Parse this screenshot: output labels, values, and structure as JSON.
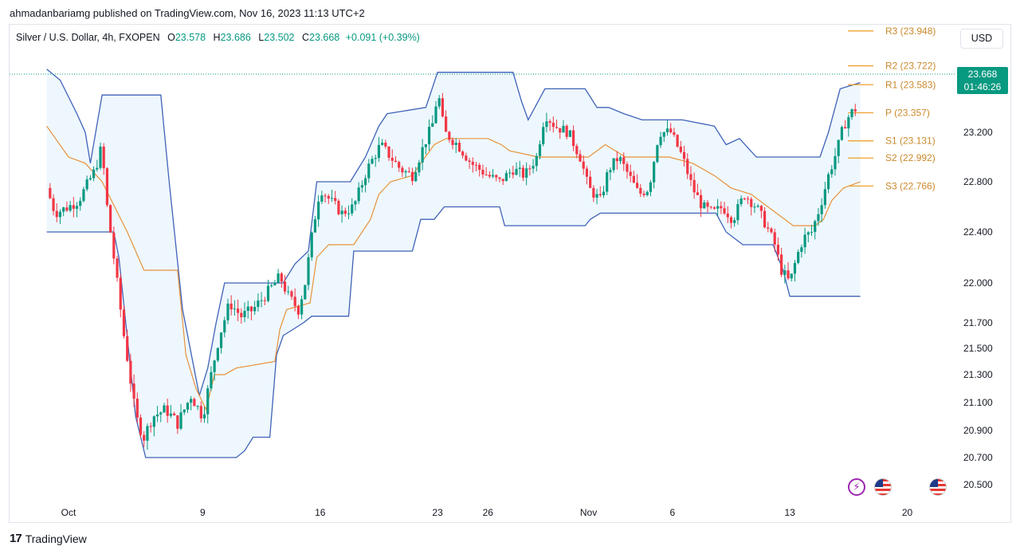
{
  "publisher": "ahmadanbariamg published on TradingView.com, Nov 16, 2023 11:13 UTC+2",
  "legend": {
    "symbol": "Silver / U.S. Dollar, 4h, FXOPEN",
    "o_label": "O",
    "o": "23.578",
    "h_label": "H",
    "h": "23.686",
    "l_label": "L",
    "l": "23.502",
    "c_label": "C",
    "c": "23.668",
    "change": "+0.091 (+0.39%)"
  },
  "currency": "USD",
  "price_tag": {
    "price": "23.668",
    "countdown": "01:46:26"
  },
  "footer": {
    "logo_text": "TradingView"
  },
  "colors": {
    "up": "#089981",
    "down": "#f23645",
    "channel": "#3f62b8",
    "midline": "#e8923a",
    "pivot": "#f0a030",
    "fill": "#e3f2fd"
  },
  "icons": [
    "lightning-icon",
    "us-flag-icon",
    "us-flag-icon"
  ],
  "chart_data": {
    "type": "candlestick",
    "title": "Silver / U.S. Dollar, 4h, FXOPEN",
    "y_ticks": [
      "23.200",
      "22.800",
      "22.400",
      "22.000",
      "21.700",
      "21.500",
      "21.300",
      "21.100",
      "20.900",
      "20.700",
      "20.500"
    ],
    "y_tick_values": [
      23.2,
      22.8,
      22.4,
      22.0,
      21.7,
      21.5,
      21.3,
      21.1,
      20.9,
      20.7,
      20.5
    ],
    "x_ticks": [
      {
        "label": "Oct",
        "day": 0
      },
      {
        "label": "9",
        "day": 8
      },
      {
        "label": "16",
        "day": 15
      },
      {
        "label": "23",
        "day": 22
      },
      {
        "label": "26",
        "day": 25
      },
      {
        "label": "Nov",
        "day": 31
      },
      {
        "label": "6",
        "day": 36
      },
      {
        "label": "13",
        "day": 43
      },
      {
        "label": "20",
        "day": 50
      }
    ],
    "pivots": [
      {
        "name": "R3",
        "label": "R3 (23.948)",
        "value": 23.948
      },
      {
        "name": "R2",
        "label": "R2 (23.722)",
        "value": 23.722
      },
      {
        "name": "R1",
        "label": "R1 (23.583)",
        "value": 23.583
      },
      {
        "name": "P",
        "label": "P (23.357)",
        "value": 23.357
      },
      {
        "name": "S1",
        "label": "S1 (23.131)",
        "value": 23.131
      },
      {
        "name": "S2",
        "label": "S2 (22.992)",
        "value": 22.992
      },
      {
        "name": "S3",
        "label": "S3 (22.766)",
        "value": 22.766
      }
    ],
    "last_price": 23.668,
    "price_path": [
      [
        -1.3,
        22.75
      ],
      [
        -0.8,
        22.55
      ],
      [
        0,
        22.6
      ],
      [
        0.6,
        22.65
      ],
      [
        1,
        22.75
      ],
      [
        1.6,
        22.9
      ],
      [
        2,
        23.1
      ],
      [
        2.2,
        22.7
      ],
      [
        2.7,
        22.2
      ],
      [
        3.3,
        21.6
      ],
      [
        4,
        21.0
      ],
      [
        4.5,
        20.85
      ],
      [
        5,
        21.0
      ],
      [
        5.8,
        21.05
      ],
      [
        6.5,
        20.95
      ],
      [
        7.3,
        21.15
      ],
      [
        8,
        21.0
      ],
      [
        8.5,
        21.3
      ],
      [
        9,
        21.6
      ],
      [
        9.6,
        21.85
      ],
      [
        10.3,
        21.75
      ],
      [
        11,
        21.8
      ],
      [
        12,
        21.95
      ],
      [
        12.6,
        22.05
      ],
      [
        13.1,
        21.9
      ],
      [
        13.7,
        21.8
      ],
      [
        14.1,
        22.0
      ],
      [
        14.6,
        22.45
      ],
      [
        15,
        22.75
      ],
      [
        15.6,
        22.65
      ],
      [
        16.3,
        22.55
      ],
      [
        17,
        22.6
      ],
      [
        17.8,
        22.9
      ],
      [
        18.6,
        23.1
      ],
      [
        19.2,
        23.0
      ],
      [
        19.8,
        22.9
      ],
      [
        20.5,
        22.85
      ],
      [
        21.2,
        23.1
      ],
      [
        21.8,
        23.3
      ],
      [
        22,
        23.55
      ],
      [
        22.4,
        23.2
      ],
      [
        23.2,
        23.1
      ],
      [
        24,
        22.95
      ],
      [
        25,
        22.85
      ],
      [
        25.7,
        22.8
      ],
      [
        26.5,
        22.9
      ],
      [
        27.2,
        22.85
      ],
      [
        27.9,
        23.0
      ],
      [
        28.4,
        23.35
      ],
      [
        29,
        23.25
      ],
      [
        29.8,
        23.2
      ],
      [
        30.5,
        23.0
      ],
      [
        31,
        22.75
      ],
      [
        31.7,
        22.65
      ],
      [
        32.2,
        22.9
      ],
      [
        32.8,
        23.0
      ],
      [
        33.4,
        22.85
      ],
      [
        34,
        22.7
      ],
      [
        34.6,
        22.75
      ],
      [
        35.2,
        23.2
      ],
      [
        35.9,
        23.2
      ],
      [
        36.6,
        23.0
      ],
      [
        37.2,
        22.75
      ],
      [
        37.8,
        22.6
      ],
      [
        38.4,
        22.55
      ],
      [
        39,
        22.6
      ],
      [
        39.6,
        22.5
      ],
      [
        40.3,
        22.7
      ],
      [
        41,
        22.6
      ],
      [
        41.6,
        22.45
      ],
      [
        42.1,
        22.3
      ],
      [
        42.5,
        22.1
      ],
      [
        43,
        22.0
      ],
      [
        43.4,
        22.2
      ],
      [
        43.8,
        22.35
      ],
      [
        44.3,
        22.4
      ],
      [
        44.8,
        22.6
      ],
      [
        45.3,
        22.85
      ],
      [
        45.8,
        23.05
      ],
      [
        46.2,
        23.25
      ],
      [
        46.6,
        23.35
      ],
      [
        47,
        23.4
      ],
      [
        47.3,
        23.668
      ]
    ],
    "channel_upper": [
      [
        -1.3,
        23.7
      ],
      [
        -0.5,
        23.62
      ],
      [
        0.5,
        23.35
      ],
      [
        1,
        23.2
      ],
      [
        1.3,
        22.95
      ],
      [
        2,
        23.5
      ],
      [
        5.5,
        23.5
      ],
      [
        6,
        22.8
      ],
      [
        6.8,
        21.8
      ],
      [
        7.8,
        21.15
      ],
      [
        8.3,
        21.35
      ],
      [
        8.8,
        21.7
      ],
      [
        9.3,
        22.0
      ],
      [
        12.8,
        22.0
      ],
      [
        13.5,
        22.15
      ],
      [
        14.3,
        22.25
      ],
      [
        14.8,
        22.8
      ],
      [
        16.8,
        22.8
      ],
      [
        17.7,
        23.0
      ],
      [
        18.5,
        23.25
      ],
      [
        19,
        23.35
      ],
      [
        21.3,
        23.4
      ],
      [
        22,
        23.68
      ],
      [
        26.5,
        23.68
      ],
      [
        27,
        23.45
      ],
      [
        27.4,
        23.3
      ],
      [
        28.4,
        23.55
      ],
      [
        30.8,
        23.55
      ],
      [
        31.5,
        23.4
      ],
      [
        32.2,
        23.4
      ],
      [
        33.1,
        23.35
      ],
      [
        34.2,
        23.3
      ],
      [
        36.6,
        23.3
      ],
      [
        38.5,
        23.25
      ],
      [
        39.2,
        23.1
      ],
      [
        40,
        23.15
      ],
      [
        41,
        23.0
      ],
      [
        42.1,
        23.0
      ],
      [
        43.5,
        23.0
      ],
      [
        44.8,
        23.0
      ],
      [
        45.3,
        23.2
      ],
      [
        46,
        23.55
      ],
      [
        47.2,
        23.6
      ]
    ],
    "channel_lower": [
      [
        -1.3,
        22.4
      ],
      [
        1,
        22.4
      ],
      [
        2.7,
        22.4
      ],
      [
        3,
        22.2
      ],
      [
        4,
        21.0
      ],
      [
        4.6,
        20.7
      ],
      [
        8.5,
        20.7
      ],
      [
        10,
        20.7
      ],
      [
        10.5,
        20.75
      ],
      [
        11,
        20.85
      ],
      [
        12,
        20.85
      ],
      [
        12.4,
        21.45
      ],
      [
        12.8,
        21.6
      ],
      [
        14,
        21.7
      ],
      [
        14.5,
        21.75
      ],
      [
        16.7,
        21.75
      ],
      [
        17,
        22.25
      ],
      [
        20.5,
        22.25
      ],
      [
        21,
        22.5
      ],
      [
        21.8,
        22.5
      ],
      [
        22.4,
        22.6
      ],
      [
        25.7,
        22.6
      ],
      [
        26,
        22.45
      ],
      [
        30.8,
        22.45
      ],
      [
        31.1,
        22.5
      ],
      [
        31.7,
        22.55
      ],
      [
        35.2,
        22.55
      ],
      [
        38.6,
        22.55
      ],
      [
        39.2,
        22.4
      ],
      [
        40.2,
        22.3
      ],
      [
        42,
        22.3
      ],
      [
        42.6,
        22.1
      ],
      [
        43,
        21.9
      ],
      [
        47.2,
        21.9
      ]
    ],
    "midline": [
      [
        -1.3,
        23.25
      ],
      [
        0,
        23.0
      ],
      [
        1,
        22.95
      ],
      [
        2,
        22.8
      ],
      [
        3.5,
        22.4
      ],
      [
        4.5,
        22.1
      ],
      [
        6.5,
        22.1
      ],
      [
        7,
        21.45
      ],
      [
        7.6,
        21.2
      ],
      [
        8.2,
        21.05
      ],
      [
        8.7,
        21.3
      ],
      [
        9.3,
        21.3
      ],
      [
        10,
        21.35
      ],
      [
        12.3,
        21.4
      ],
      [
        12.6,
        21.65
      ],
      [
        13,
        21.8
      ],
      [
        14.4,
        21.85
      ],
      [
        14.8,
        22.2
      ],
      [
        15.5,
        22.3
      ],
      [
        17,
        22.3
      ],
      [
        18,
        22.5
      ],
      [
        18.5,
        22.7
      ],
      [
        19.2,
        22.8
      ],
      [
        20.5,
        22.85
      ],
      [
        21,
        22.95
      ],
      [
        21.8,
        23.1
      ],
      [
        22.5,
        23.15
      ],
      [
        25,
        23.15
      ],
      [
        25.8,
        23.1
      ],
      [
        26.3,
        23.05
      ],
      [
        28,
        23.0
      ],
      [
        31,
        23.0
      ],
      [
        32,
        23.1
      ],
      [
        33.2,
        23.0
      ],
      [
        35.8,
        23.0
      ],
      [
        37.2,
        22.95
      ],
      [
        38.5,
        22.85
      ],
      [
        39.5,
        22.75
      ],
      [
        40.7,
        22.7
      ],
      [
        42.2,
        22.55
      ],
      [
        43.2,
        22.45
      ],
      [
        44.5,
        22.45
      ],
      [
        45,
        22.5
      ],
      [
        45.5,
        22.65
      ],
      [
        46.2,
        22.75
      ],
      [
        47.2,
        22.8
      ]
    ]
  }
}
